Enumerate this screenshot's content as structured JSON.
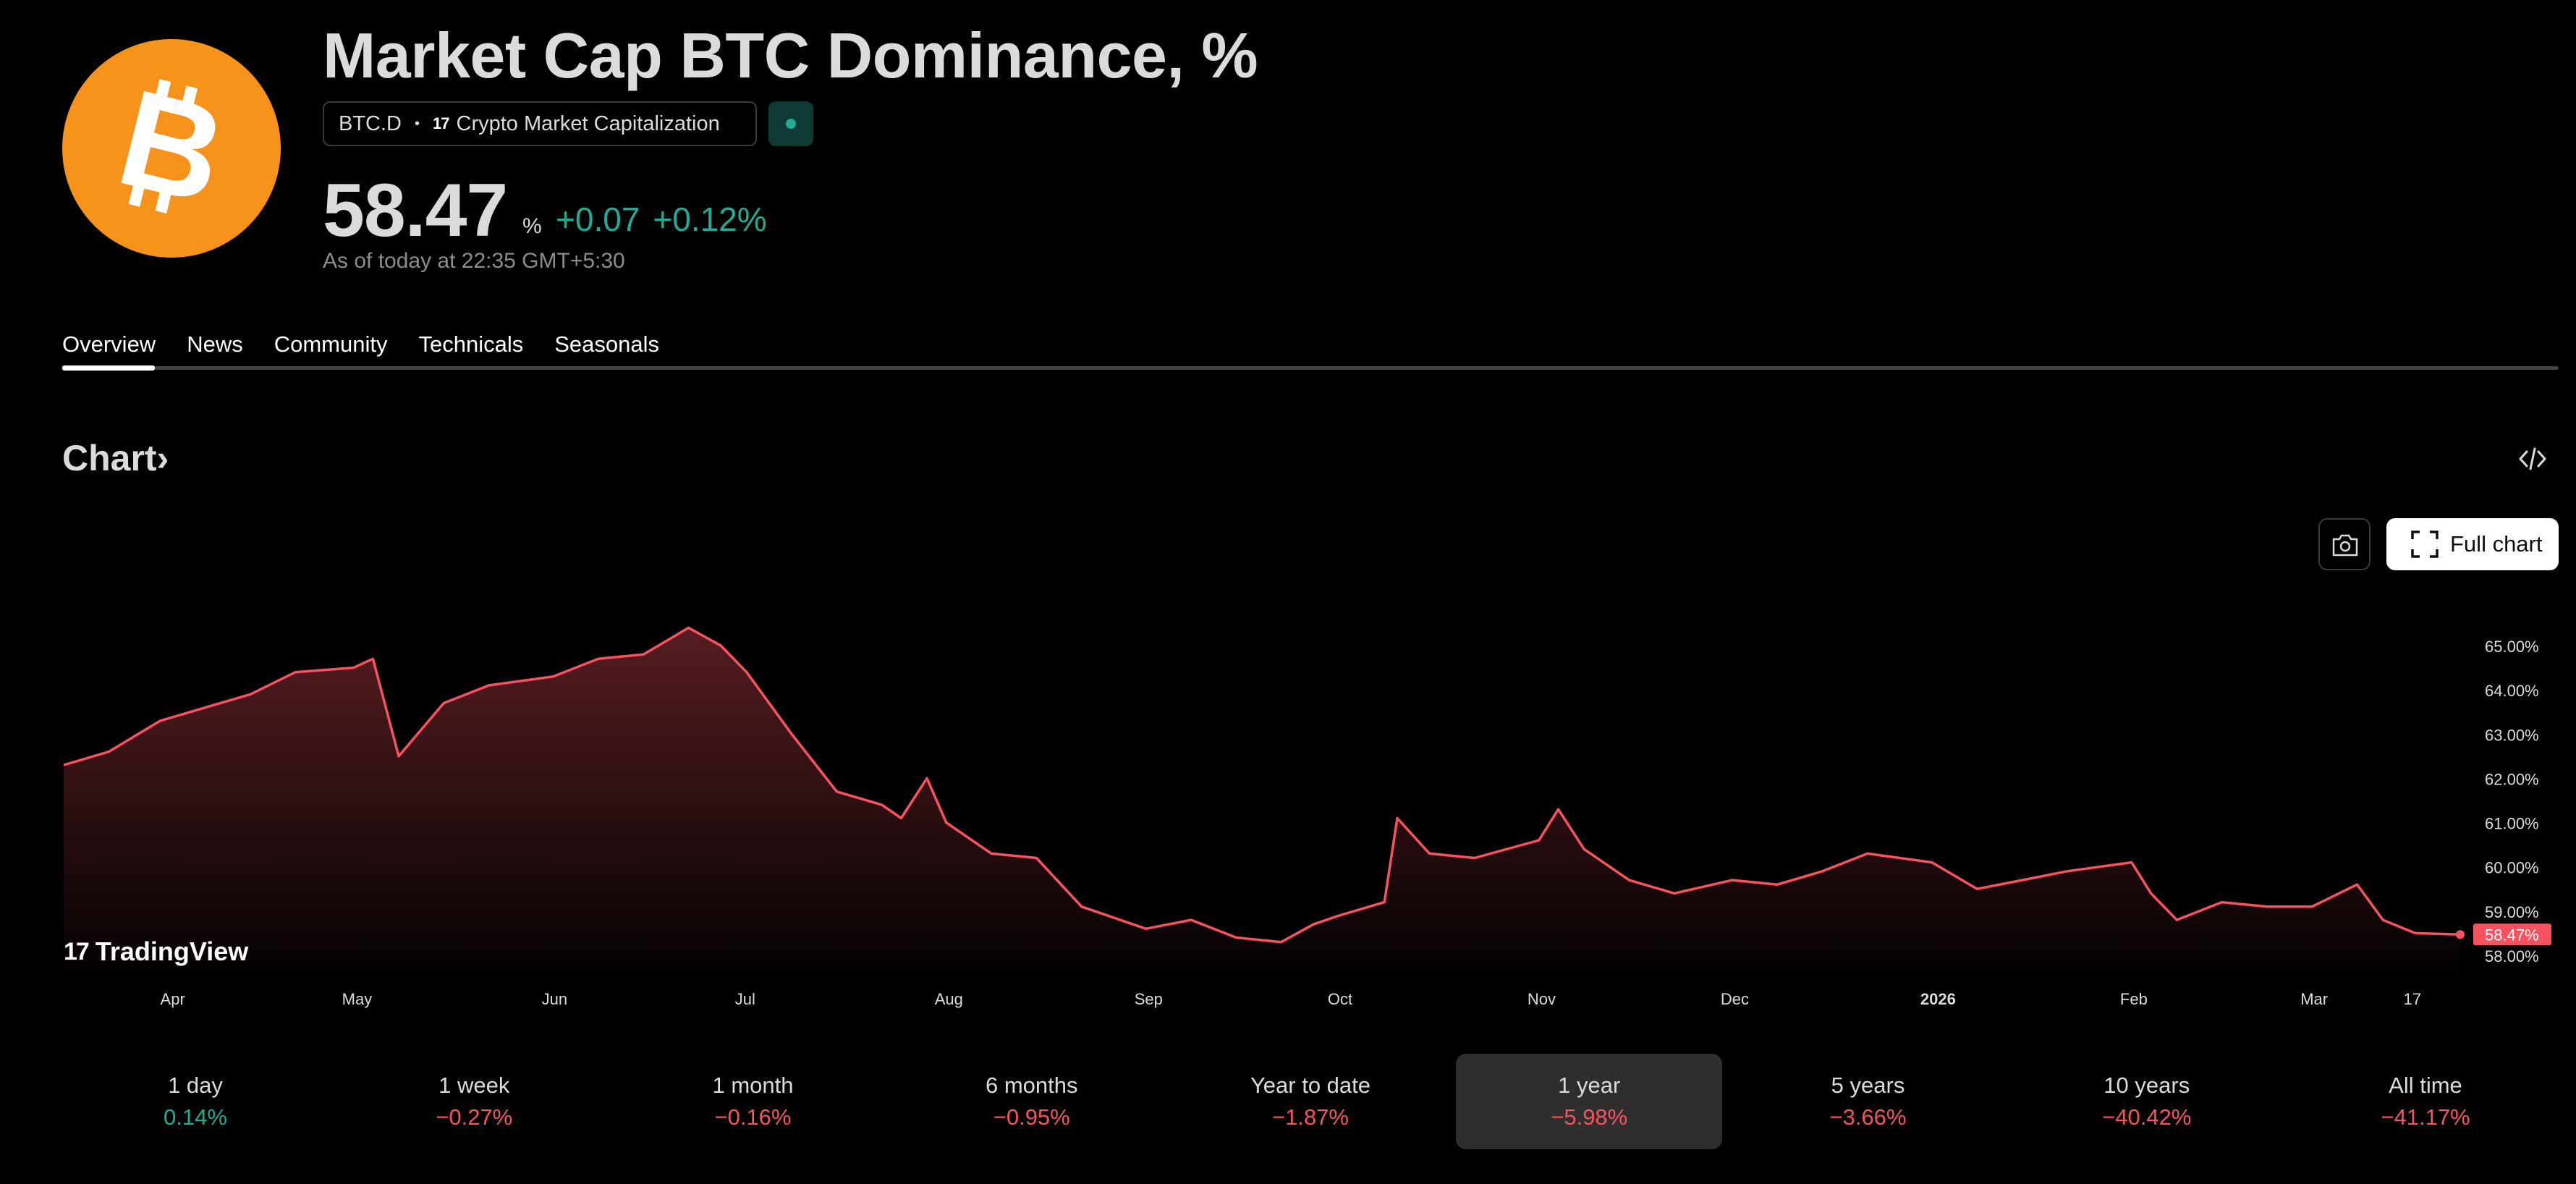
{
  "header": {
    "title": "Market Cap BTC Dominance, %",
    "symbol": "BTC.D",
    "exchange": "Crypto Market Capitalization",
    "exchange_logo": "17",
    "logo_icon": "bitcoin-icon",
    "market_status": "open",
    "price": "58.47",
    "unit": "%",
    "change_abs": "+0.07",
    "change_pct": "+0.12%",
    "as_of": "As of today at 22:35 GMT+5:30"
  },
  "tabs": [
    "Overview",
    "News",
    "Community",
    "Technicals",
    "Seasonals"
  ],
  "active_tab": "Overview",
  "chart_section": {
    "title": "Chart",
    "chevron": "›",
    "full_chart_label": "Full chart",
    "watermark": "TradingView",
    "watermark_mark": "17"
  },
  "colors": {
    "line": "#f7525f",
    "positive": "#22ab94",
    "negative": "#f7525f",
    "brand": "#f7931a"
  },
  "chart_data": {
    "type": "area",
    "ylim": [
      58.0,
      65.0
    ],
    "y_ticks": [
      "65.00%",
      "64.00%",
      "63.00%",
      "62.00%",
      "61.00%",
      "60.00%",
      "59.00%",
      "58.00%"
    ],
    "x_ticks": [
      "Apr",
      "May",
      "Jun",
      "Jul",
      "Aug",
      "Sep",
      "Oct",
      "Nov",
      "Dec",
      "2026",
      "Feb",
      "Mar",
      "17"
    ],
    "last_label": "58.47%",
    "series": [
      {
        "x": [
          "2025-03-17",
          "2025-03-24",
          "2025-04-01",
          "2025-04-08",
          "2025-04-15",
          "2025-04-22",
          "2025-05-01",
          "2025-05-04",
          "2025-05-08",
          "2025-05-15",
          "2025-05-22",
          "2025-06-01",
          "2025-06-08",
          "2025-06-15",
          "2025-06-22",
          "2025-06-27",
          "2025-07-01",
          "2025-07-08",
          "2025-07-15",
          "2025-07-22",
          "2025-07-25",
          "2025-07-29",
          "2025-08-01",
          "2025-08-08",
          "2025-08-15",
          "2025-08-22",
          "2025-09-01",
          "2025-09-08",
          "2025-09-15",
          "2025-09-22",
          "2025-09-27",
          "2025-10-01",
          "2025-10-08",
          "2025-10-10",
          "2025-10-15",
          "2025-10-22",
          "2025-11-01",
          "2025-11-04",
          "2025-11-08",
          "2025-11-15",
          "2025-11-22",
          "2025-12-01",
          "2025-12-08",
          "2025-12-15",
          "2025-12-22",
          "2026-01-01",
          "2026-01-08",
          "2026-01-15",
          "2026-01-22",
          "2026-02-01",
          "2026-02-04",
          "2026-02-08",
          "2026-02-15",
          "2026-02-22",
          "2026-03-01",
          "2026-03-08",
          "2026-03-12",
          "2026-03-17",
          "2026-03-24"
        ],
        "y": [
          62.3,
          62.6,
          63.3,
          63.6,
          63.9,
          64.4,
          64.5,
          64.7,
          62.5,
          63.7,
          64.1,
          64.3,
          64.7,
          64.8,
          65.4,
          65.0,
          64.4,
          63.0,
          61.7,
          61.4,
          61.1,
          62.0,
          61.0,
          60.3,
          60.2,
          59.1,
          58.6,
          58.8,
          58.4,
          58.3,
          58.7,
          58.9,
          59.2,
          61.1,
          60.3,
          60.2,
          60.6,
          61.3,
          60.4,
          59.7,
          59.4,
          59.7,
          59.6,
          59.9,
          60.3,
          60.1,
          59.5,
          59.7,
          59.9,
          60.1,
          59.4,
          58.8,
          59.2,
          59.1,
          59.1,
          59.6,
          58.8,
          58.5,
          58.47
        ]
      }
    ]
  },
  "periods": [
    {
      "label": "1 day",
      "value": "0.14%",
      "dir": "pos"
    },
    {
      "label": "1 week",
      "value": "−0.27%",
      "dir": "neg"
    },
    {
      "label": "1 month",
      "value": "−0.16%",
      "dir": "neg"
    },
    {
      "label": "6 months",
      "value": "−0.95%",
      "dir": "neg"
    },
    {
      "label": "Year to date",
      "value": "−1.87%",
      "dir": "neg"
    },
    {
      "label": "1 year",
      "value": "−5.98%",
      "dir": "neg"
    },
    {
      "label": "5 years",
      "value": "−3.66%",
      "dir": "neg"
    },
    {
      "label": "10 years",
      "value": "−40.42%",
      "dir": "neg"
    },
    {
      "label": "All time",
      "value": "−41.17%",
      "dir": "neg"
    }
  ],
  "active_period": "1 year"
}
